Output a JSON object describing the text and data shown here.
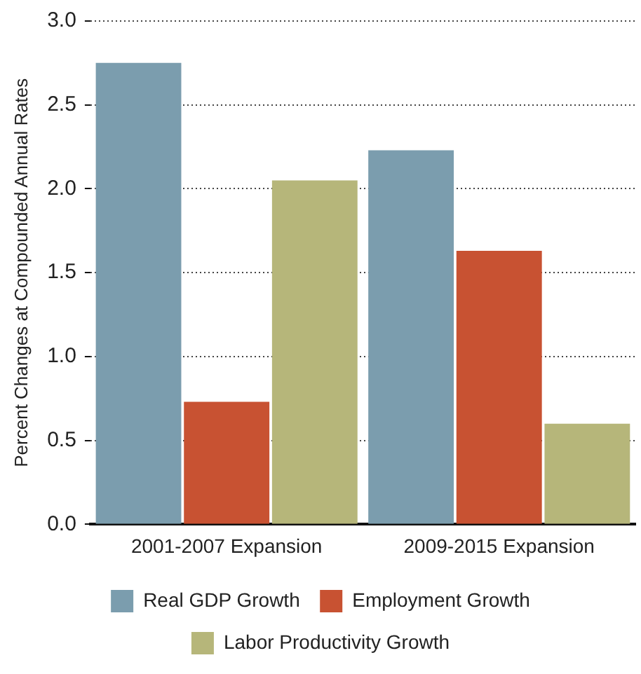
{
  "chart_data": {
    "type": "bar",
    "ylabel": "Percent Changes at Compounded Annual Rates",
    "categories": [
      "2001-2007 Expansion",
      "2009-2015 Expansion"
    ],
    "series": [
      {
        "name": "Real GDP Growth",
        "color": "#7b9dae",
        "values": [
          2.75,
          2.23
        ]
      },
      {
        "name": "Employment Growth",
        "color": "#c85232",
        "values": [
          0.73,
          1.63
        ]
      },
      {
        "name": "Labor Productivity Growth",
        "color": "#b6b67a",
        "values": [
          2.05,
          0.6
        ]
      }
    ],
    "ylim": [
      0,
      3
    ],
    "yticks": [
      {
        "value": 0,
        "label": "0.0"
      },
      0.5,
      {
        "value": 1,
        "label": "1.0"
      },
      1.5,
      {
        "value": 2,
        "label": "2.0"
      },
      2.5,
      {
        "value": 3,
        "label": "3.0"
      }
    ],
    "grid": "y",
    "legend": "bottom"
  }
}
